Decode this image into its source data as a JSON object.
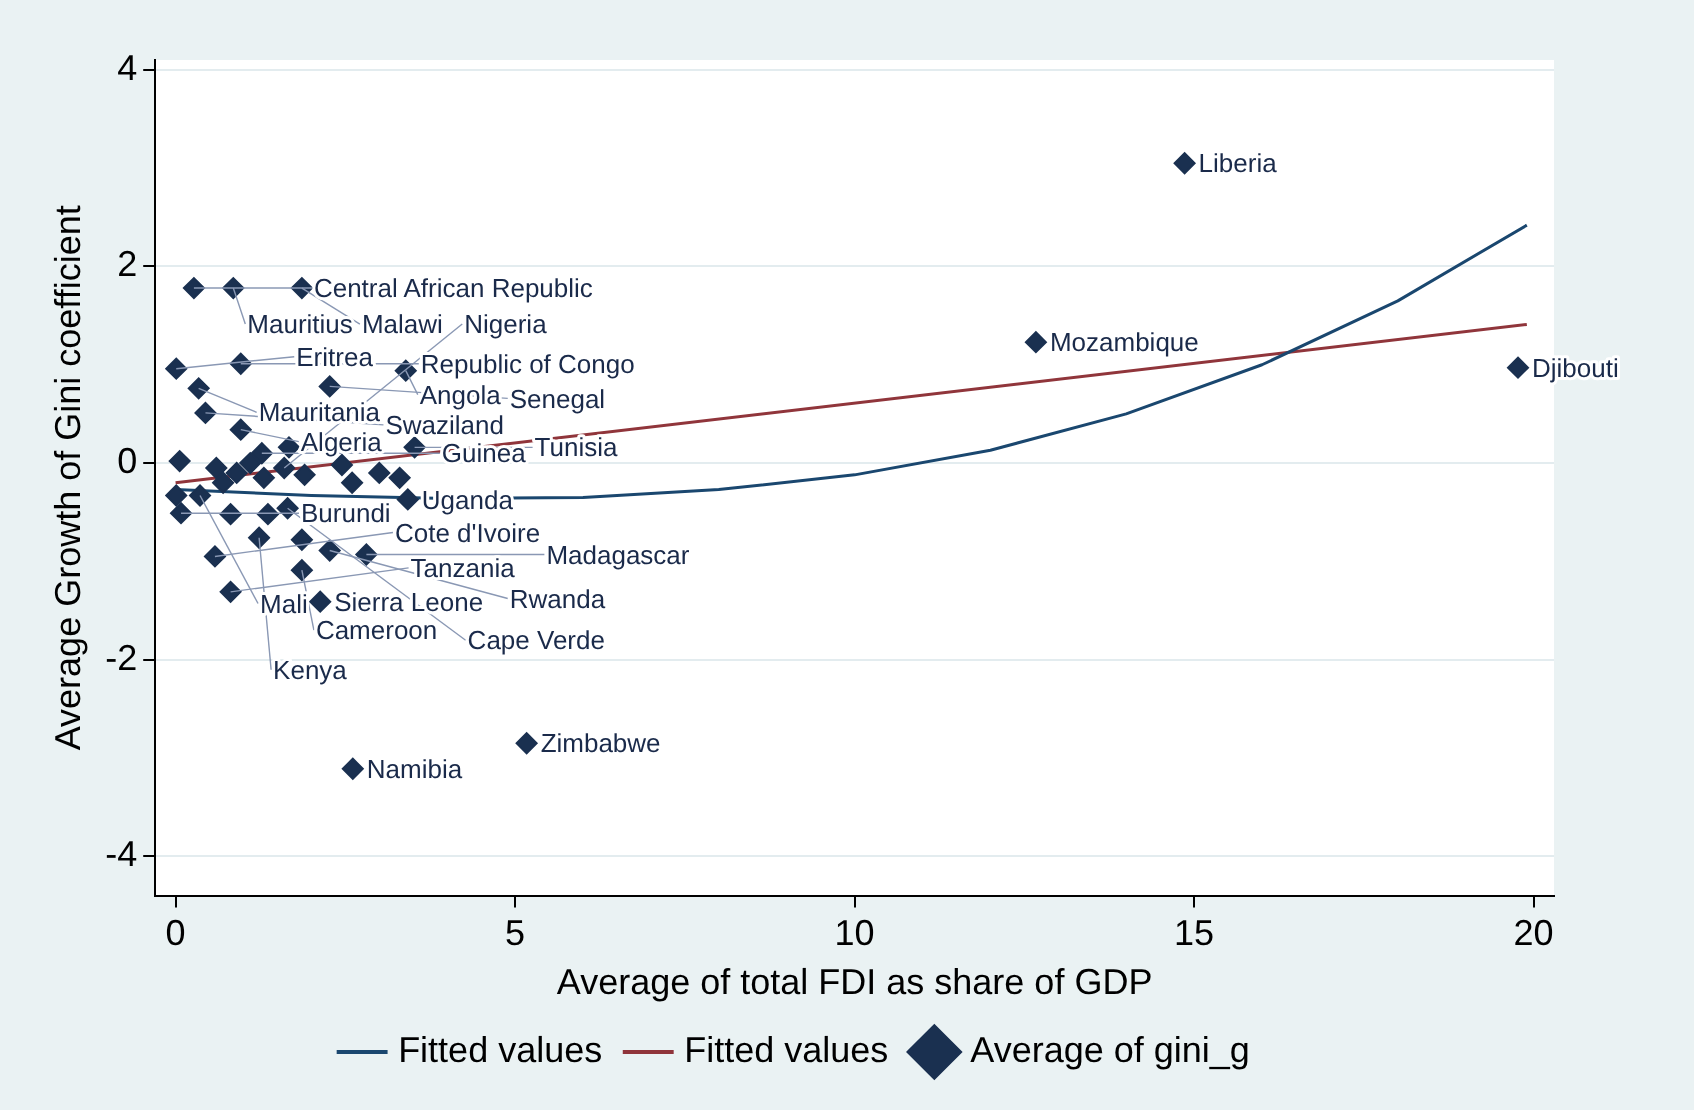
{
  "chart_data": {
    "type": "scatter",
    "xlabel": "Average of total FDI as share of GDP",
    "ylabel": "Average Growth of Gini coefficient",
    "xlim": [
      -0.3,
      20.3
    ],
    "ylim": [
      -4.4,
      4.1
    ],
    "xticks": [
      0,
      5,
      10,
      15,
      20
    ],
    "yticks": [
      -4,
      -2,
      0,
      2,
      4
    ],
    "grid": "y",
    "legend": "bottom",
    "series": [
      {
        "name": "Fitted values",
        "type": "line",
        "color": "#1a476f",
        "x": [
          0,
          2,
          4,
          6,
          8,
          10,
          12,
          14,
          16,
          18,
          19.9
        ],
        "values": [
          -0.27,
          -0.33,
          -0.36,
          -0.35,
          -0.27,
          -0.12,
          0.13,
          0.5,
          1.0,
          1.65,
          2.42
        ]
      },
      {
        "name": "Fitted values",
        "type": "line",
        "color": "#90353b",
        "x": [
          0,
          19.9
        ],
        "values": [
          -0.2,
          1.41
        ]
      },
      {
        "name": "Average of gini_g",
        "marker": "diamond",
        "color": "#1a3050",
        "x": [
          14.86,
          12.67,
          19.77,
          5.17,
          2.61,
          2.13,
          0.81,
          0.58,
          1.86,
          2.81,
          2.27,
          0.27,
          0.85,
          1.86,
          0.01,
          0.96,
          3.39,
          0.34,
          2.27,
          0.44,
          0.96,
          1.27,
          1.67,
          3.52,
          0.06,
          3.42,
          0.08,
          0.01,
          0.36,
          1.65,
          1.23,
          1.86,
          0.81,
          1.36,
          0.6,
          0.9,
          1.3,
          1.6,
          1.9,
          2.45,
          2.6,
          3.0,
          3.3,
          0.7,
          1.1
        ],
        "values": [
          3.05,
          1.23,
          0.97,
          -2.85,
          -3.11,
          -1.41,
          -1.31,
          -0.95,
          -1.09,
          -0.93,
          -0.89,
          1.78,
          1.78,
          1.78,
          0.96,
          1.01,
          0.94,
          0.76,
          0.78,
          0.51,
          0.34,
          0.1,
          0.16,
          0.16,
          0.02,
          -0.37,
          -0.51,
          -0.33,
          -0.33,
          -0.46,
          -0.76,
          -0.78,
          -0.52,
          -0.52,
          -0.05,
          -0.1,
          -0.15,
          -0.05,
          -0.12,
          -0.02,
          -0.2,
          -0.1,
          -0.15,
          -0.2,
          0.0
        ]
      }
    ],
    "annotations": [
      {
        "text": "Liberia",
        "x": 14.86,
        "y": 3.05
      },
      {
        "text": "Mozambique",
        "x": 12.67,
        "y": 1.23
      },
      {
        "text": "Djibouti",
        "x": 19.77,
        "y": 0.97
      },
      {
        "text": "Zimbabwe",
        "x": 5.17,
        "y": -2.85
      },
      {
        "text": "Namibia",
        "x": 2.61,
        "y": -3.11
      },
      {
        "text": "Sierra Leone",
        "x": 2.13,
        "y": -1.41
      },
      {
        "text": "Tanzania",
        "x": 0.81,
        "y": -1.31
      },
      {
        "text": "Cote d'Ivoire",
        "x": 0.58,
        "y": -0.95
      },
      {
        "text": "Cameroon",
        "x": 1.86,
        "y": -1.09
      },
      {
        "text": "Madagascar",
        "x": 2.81,
        "y": -0.93
      },
      {
        "text": "Rwanda",
        "x": 2.27,
        "y": -0.89
      },
      {
        "text": "Central African Republic",
        "x": 0.27,
        "y": 1.78
      },
      {
        "text": "Mauritius",
        "x": 0.85,
        "y": 1.78
      },
      {
        "text": "Malawi",
        "x": 1.86,
        "y": 1.78
      },
      {
        "text": "Eritrea",
        "x": 0.01,
        "y": 0.96
      },
      {
        "text": "Republic of Congo",
        "x": 0.96,
        "y": 1.01
      },
      {
        "text": "Angola",
        "x": 3.39,
        "y": 0.94
      },
      {
        "text": "Mauritania",
        "x": 0.34,
        "y": 0.76
      },
      {
        "text": "Senegal",
        "x": 2.27,
        "y": 0.78
      },
      {
        "text": "Swaziland",
        "x": 0.44,
        "y": 0.51
      },
      {
        "text": "Algeria",
        "x": 0.96,
        "y": 0.34
      },
      {
        "text": "Guinea",
        "x": 1.27,
        "y": 0.1
      },
      {
        "text": "Tunisia",
        "x": 3.52,
        "y": 0.16
      },
      {
        "text": "Uganda",
        "x": 3.42,
        "y": -0.37
      },
      {
        "text": "Burundi",
        "x": 0.08,
        "y": -0.51
      },
      {
        "text": "Mali",
        "x": 0.36,
        "y": -0.33
      },
      {
        "text": "Cape Verde",
        "x": 1.65,
        "y": -0.46
      },
      {
        "text": "Kenya",
        "x": 1.23,
        "y": -0.76
      },
      {
        "text": "Nigeria",
        "x": 1.6,
        "y": -0.05
      }
    ]
  }
}
